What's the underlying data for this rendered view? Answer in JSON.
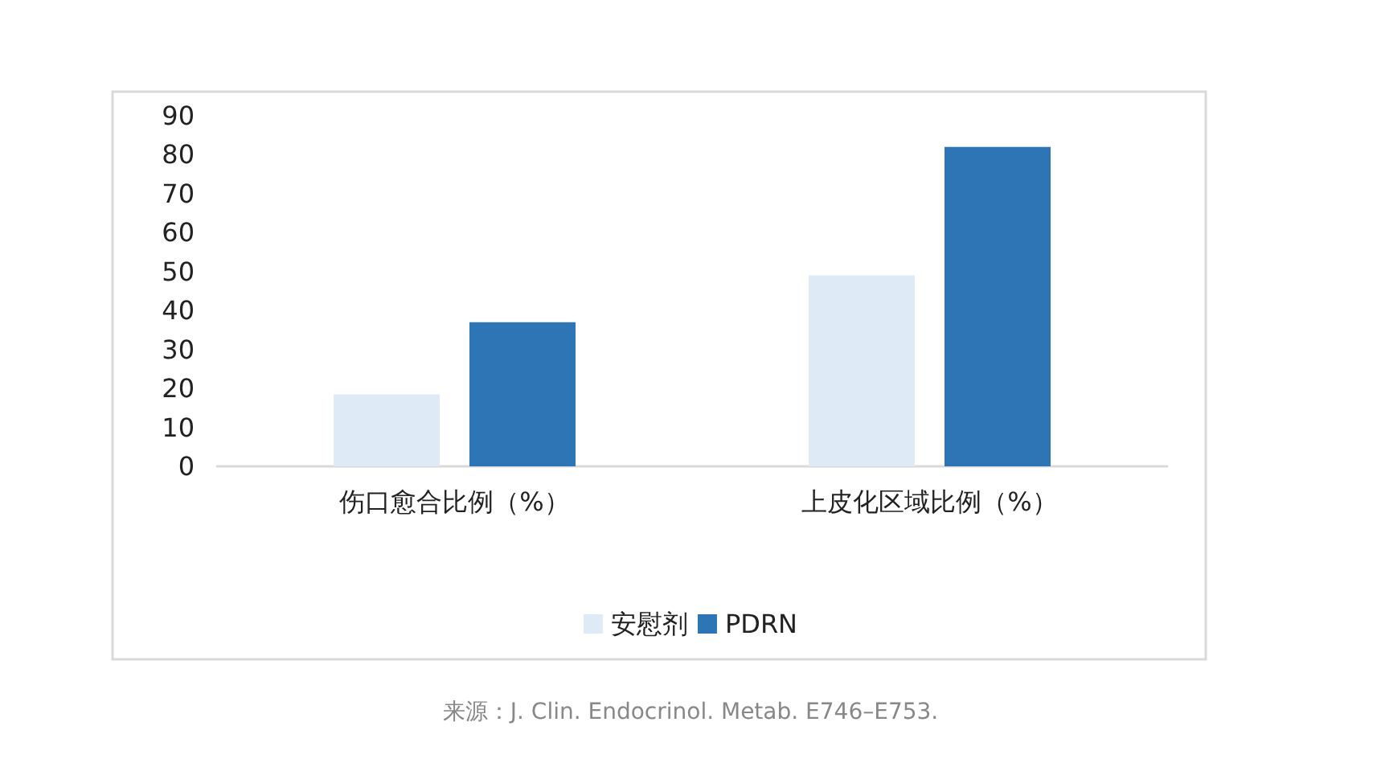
{
  "chart_data": {
    "type": "bar",
    "categories": [
      "伤口愈合比例（%）",
      "上皮化区域比例（%）"
    ],
    "series": [
      {
        "name": "安慰剂",
        "color": "#deeaf6",
        "values": [
          18.5,
          49
        ]
      },
      {
        "name": "PDRN",
        "color": "#2e75b6",
        "values": [
          37,
          82
        ]
      }
    ],
    "ylim": [
      0,
      90
    ],
    "yticks": [
      0,
      10,
      20,
      30,
      40,
      50,
      60,
      70,
      80,
      90
    ],
    "grid": false,
    "legend": "bottom",
    "annotations": [
      "来源：J. Clin. Endocrinol. Metab. E746–E753."
    ]
  }
}
